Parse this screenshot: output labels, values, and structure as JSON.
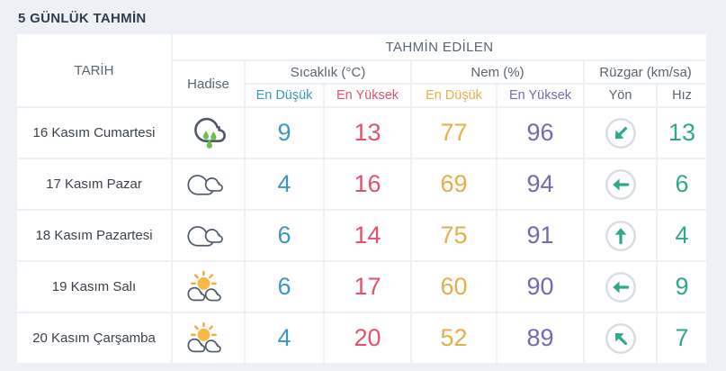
{
  "page": {
    "title": "5 GÜNLÜK TAHMİN"
  },
  "colors": {
    "background": "#edf1f5",
    "cell_background": "#ffffff",
    "title_text": "#2d3c4e",
    "header_text": "#5a6570",
    "date_text": "#3a424c",
    "temp_min": "#3d97c2",
    "temp_max": "#e0536b",
    "humidity_min": "#e6ad49",
    "humidity_max": "#7668b2",
    "wind": "#2fa98c",
    "direction_ring": "#d8dde3",
    "rain_drop": "#6abf4d",
    "sun": "#f7b844",
    "cloud_outline": "#4e5a6b"
  },
  "table": {
    "header": {
      "date": "TARİH",
      "predicted": "TAHMİN EDİLEN",
      "condition": "Hadise",
      "temperature": "Sıcaklık (°C)",
      "humidity": "Nem (%)",
      "wind": "Rüzgar (km/sa)",
      "min": "En Düşük",
      "max": "En Yüksek",
      "direction": "Yön",
      "speed": "Hız"
    },
    "rows": [
      {
        "date": "16 Kasım Cumartesi",
        "condition_icon": "rain-cloud",
        "temp_min": "9",
        "temp_max": "13",
        "humidity_min": "77",
        "humidity_max": "96",
        "wind_direction": "down-left",
        "wind_speed": "13"
      },
      {
        "date": "17 Kasım Pazar",
        "condition_icon": "clouds",
        "temp_min": "4",
        "temp_max": "16",
        "humidity_min": "69",
        "humidity_max": "94",
        "wind_direction": "left",
        "wind_speed": "6"
      },
      {
        "date": "18 Kasım Pazartesi",
        "condition_icon": "clouds",
        "temp_min": "6",
        "temp_max": "14",
        "humidity_min": "75",
        "humidity_max": "91",
        "wind_direction": "up",
        "wind_speed": "4"
      },
      {
        "date": "19 Kasım Salı",
        "condition_icon": "sun-clouds",
        "temp_min": "6",
        "temp_max": "17",
        "humidity_min": "60",
        "humidity_max": "90",
        "wind_direction": "left",
        "wind_speed": "9"
      },
      {
        "date": "20 Kasım Çarşamba",
        "condition_icon": "sun-clouds",
        "temp_min": "4",
        "temp_max": "20",
        "humidity_min": "52",
        "humidity_max": "89",
        "wind_direction": "up-left",
        "wind_speed": "7"
      }
    ]
  }
}
